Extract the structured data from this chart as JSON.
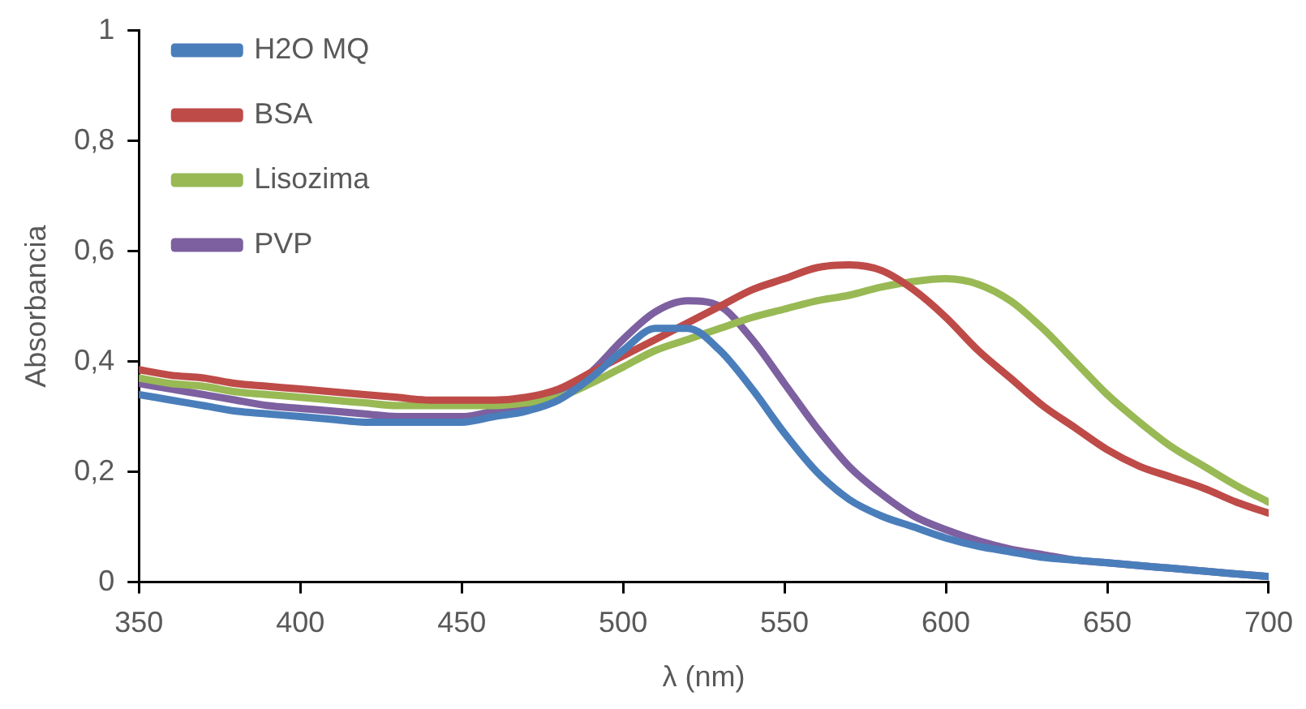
{
  "chart_data": {
    "type": "line",
    "xlabel": "λ (nm)",
    "ylabel": "Absorbancia",
    "x": [
      350,
      360,
      370,
      380,
      390,
      400,
      410,
      420,
      430,
      440,
      450,
      460,
      470,
      480,
      490,
      500,
      510,
      520,
      530,
      540,
      550,
      560,
      570,
      580,
      590,
      600,
      610,
      620,
      630,
      640,
      650,
      660,
      670,
      680,
      690,
      700
    ],
    "series": [
      {
        "name": "H2O MQ",
        "color": "#4a7ebb",
        "values": [
          0.34,
          0.33,
          0.32,
          0.31,
          0.305,
          0.3,
          0.295,
          0.29,
          0.29,
          0.29,
          0.29,
          0.3,
          0.31,
          0.33,
          0.37,
          0.42,
          0.46,
          0.46,
          0.42,
          0.35,
          0.27,
          0.2,
          0.15,
          0.12,
          0.1,
          0.08,
          0.065,
          0.055,
          0.045,
          0.04,
          0.035,
          0.03,
          0.025,
          0.02,
          0.015,
          0.01
        ]
      },
      {
        "name": "BSA",
        "color": "#be4b48",
        "values": [
          0.385,
          0.375,
          0.37,
          0.36,
          0.355,
          0.35,
          0.345,
          0.34,
          0.335,
          0.33,
          0.33,
          0.33,
          0.335,
          0.35,
          0.38,
          0.41,
          0.44,
          0.47,
          0.5,
          0.53,
          0.55,
          0.57,
          0.575,
          0.565,
          0.53,
          0.48,
          0.42,
          0.37,
          0.32,
          0.28,
          0.24,
          0.21,
          0.19,
          0.17,
          0.145,
          0.125
        ]
      },
      {
        "name": "Lisozima",
        "color": "#98b954",
        "values": [
          0.37,
          0.36,
          0.355,
          0.345,
          0.34,
          0.335,
          0.33,
          0.325,
          0.32,
          0.32,
          0.32,
          0.32,
          0.325,
          0.335,
          0.36,
          0.39,
          0.42,
          0.44,
          0.46,
          0.48,
          0.495,
          0.51,
          0.52,
          0.535,
          0.545,
          0.55,
          0.54,
          0.51,
          0.46,
          0.4,
          0.34,
          0.29,
          0.245,
          0.21,
          0.175,
          0.145
        ]
      },
      {
        "name": "PVP",
        "color": "#7d60a0",
        "values": [
          0.36,
          0.35,
          0.34,
          0.33,
          0.32,
          0.315,
          0.31,
          0.305,
          0.3,
          0.3,
          0.3,
          0.31,
          0.32,
          0.34,
          0.38,
          0.44,
          0.49,
          0.51,
          0.5,
          0.44,
          0.36,
          0.28,
          0.21,
          0.16,
          0.12,
          0.095,
          0.075,
          0.06,
          0.05,
          0.04,
          0.035,
          0.03,
          0.025,
          0.02,
          0.015,
          0.01
        ]
      }
    ],
    "xlim": [
      350,
      700
    ],
    "xticks": [
      350,
      400,
      450,
      500,
      550,
      600,
      650,
      700
    ],
    "ylim": [
      0,
      1
    ],
    "yticks": [
      0,
      {
        "value": 0.2,
        "label": "0,2"
      },
      {
        "value": 0.4,
        "label": "0,4"
      },
      {
        "value": 0.6,
        "label": "0,6"
      },
      {
        "value": 0.8,
        "label": "0,8"
      },
      1
    ],
    "grid": false,
    "legend": "top left",
    "marker": "none",
    "line_style": "solid"
  }
}
